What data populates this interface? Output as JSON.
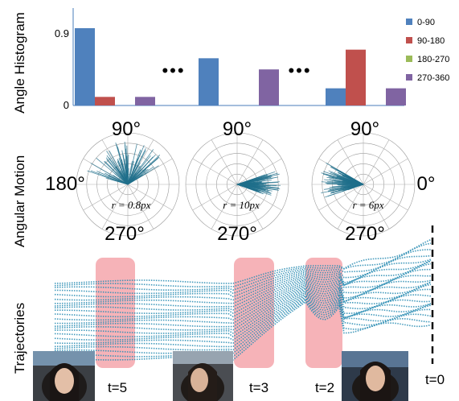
{
  "row_labels": {
    "histogram": "Angle Histogram",
    "angular": "Angular Motion",
    "trajectories": "Trajectories"
  },
  "legend": [
    {
      "label": "0-90",
      "color": "#4f81bd"
    },
    {
      "label": "90-180",
      "color": "#c0504d"
    },
    {
      "label": "180-270",
      "color": "#9bbb59"
    },
    {
      "label": "270-360",
      "color": "#8064a2"
    }
  ],
  "chart_data": {
    "type": "bar",
    "ytick_labels": [
      "0.9",
      "0"
    ],
    "ylim": [
      0,
      0.9
    ],
    "groups": [
      {
        "values": [
          0.9,
          0.1,
          0.0,
          0.1
        ]
      },
      {
        "values": [
          0.55,
          0.0,
          0.0,
          0.42
        ]
      },
      {
        "values": [
          0.2,
          0.65,
          0.0,
          0.2
        ]
      }
    ]
  },
  "ellipsis": "•••",
  "polar": {
    "angle_labels": {
      "top": "90°",
      "bottom": "270°",
      "left": "180°",
      "right": "0°"
    },
    "plots": [
      {
        "r_label": "r = 0.8px",
        "dominant_angle_deg": 100,
        "spread_deg": 70
      },
      {
        "r_label": "r = 10px",
        "dominant_angle_deg": 0,
        "spread_deg": 20
      },
      {
        "r_label": "r = 6px",
        "dominant_angle_deg": 175,
        "spread_deg": 25
      }
    ]
  },
  "time_labels": [
    "t=5",
    "t=3",
    "t=2",
    "t=0"
  ],
  "colors": {
    "traj": "#2f8fb5",
    "highlight": "#f4a6ab",
    "polar_line": "#1f6f8b"
  }
}
